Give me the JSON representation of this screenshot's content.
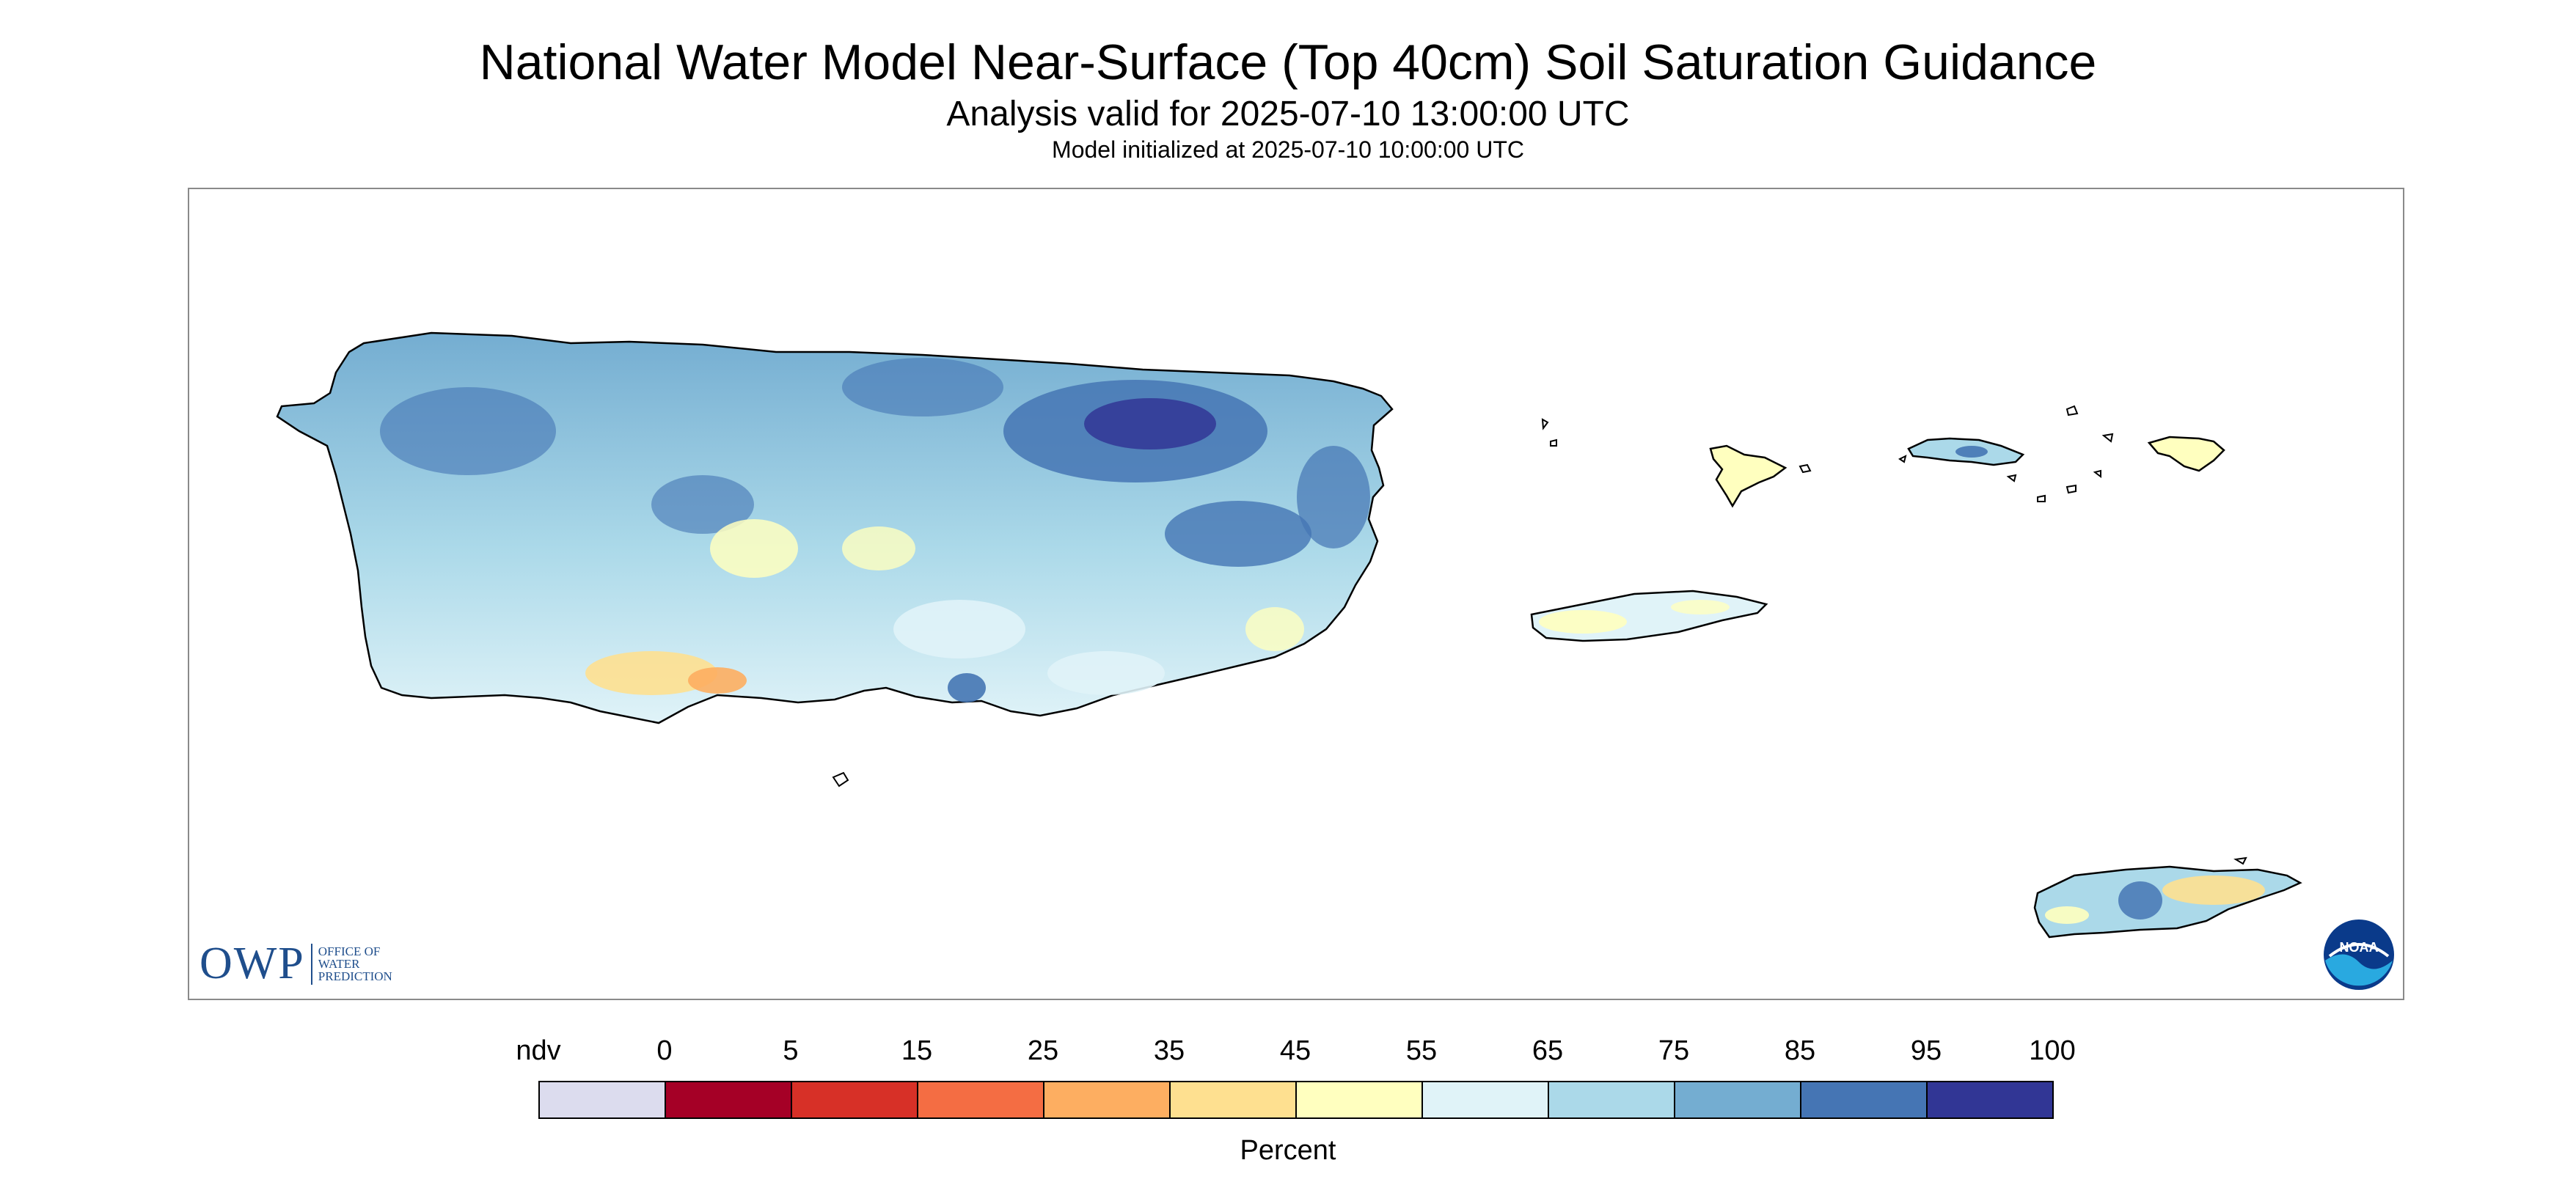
{
  "title": "National Water Model Near-Surface (Top 40cm) Soil Saturation Guidance",
  "subtitle": "Analysis valid for 2025-07-10 13:00:00 UTC",
  "init_line": "Model initialized at 2025-07-10 10:00:00 UTC",
  "logos": {
    "owp_text": "OWP",
    "owp_sub": [
      "OFFICE OF",
      "WATER",
      "PREDICTION"
    ],
    "noaa_text": "NOAA"
  },
  "legend": {
    "label": "Percent",
    "tick_labels": [
      "ndv",
      "0",
      "5",
      "15",
      "25",
      "35",
      "45",
      "55",
      "65",
      "75",
      "85",
      "95",
      "100"
    ],
    "colors": [
      "#dcdcee",
      "#a50026",
      "#d73027",
      "#f46d43",
      "#fdae61",
      "#fee090",
      "#ffffbf",
      "#e0f3f8",
      "#abd9e9",
      "#74add1",
      "#4575b4",
      "#313695"
    ]
  },
  "colors": {
    "land_typical": "#74add1",
    "land_wet": "#4575b4",
    "land_very_wet": "#313695",
    "coastline": "#000000"
  }
}
